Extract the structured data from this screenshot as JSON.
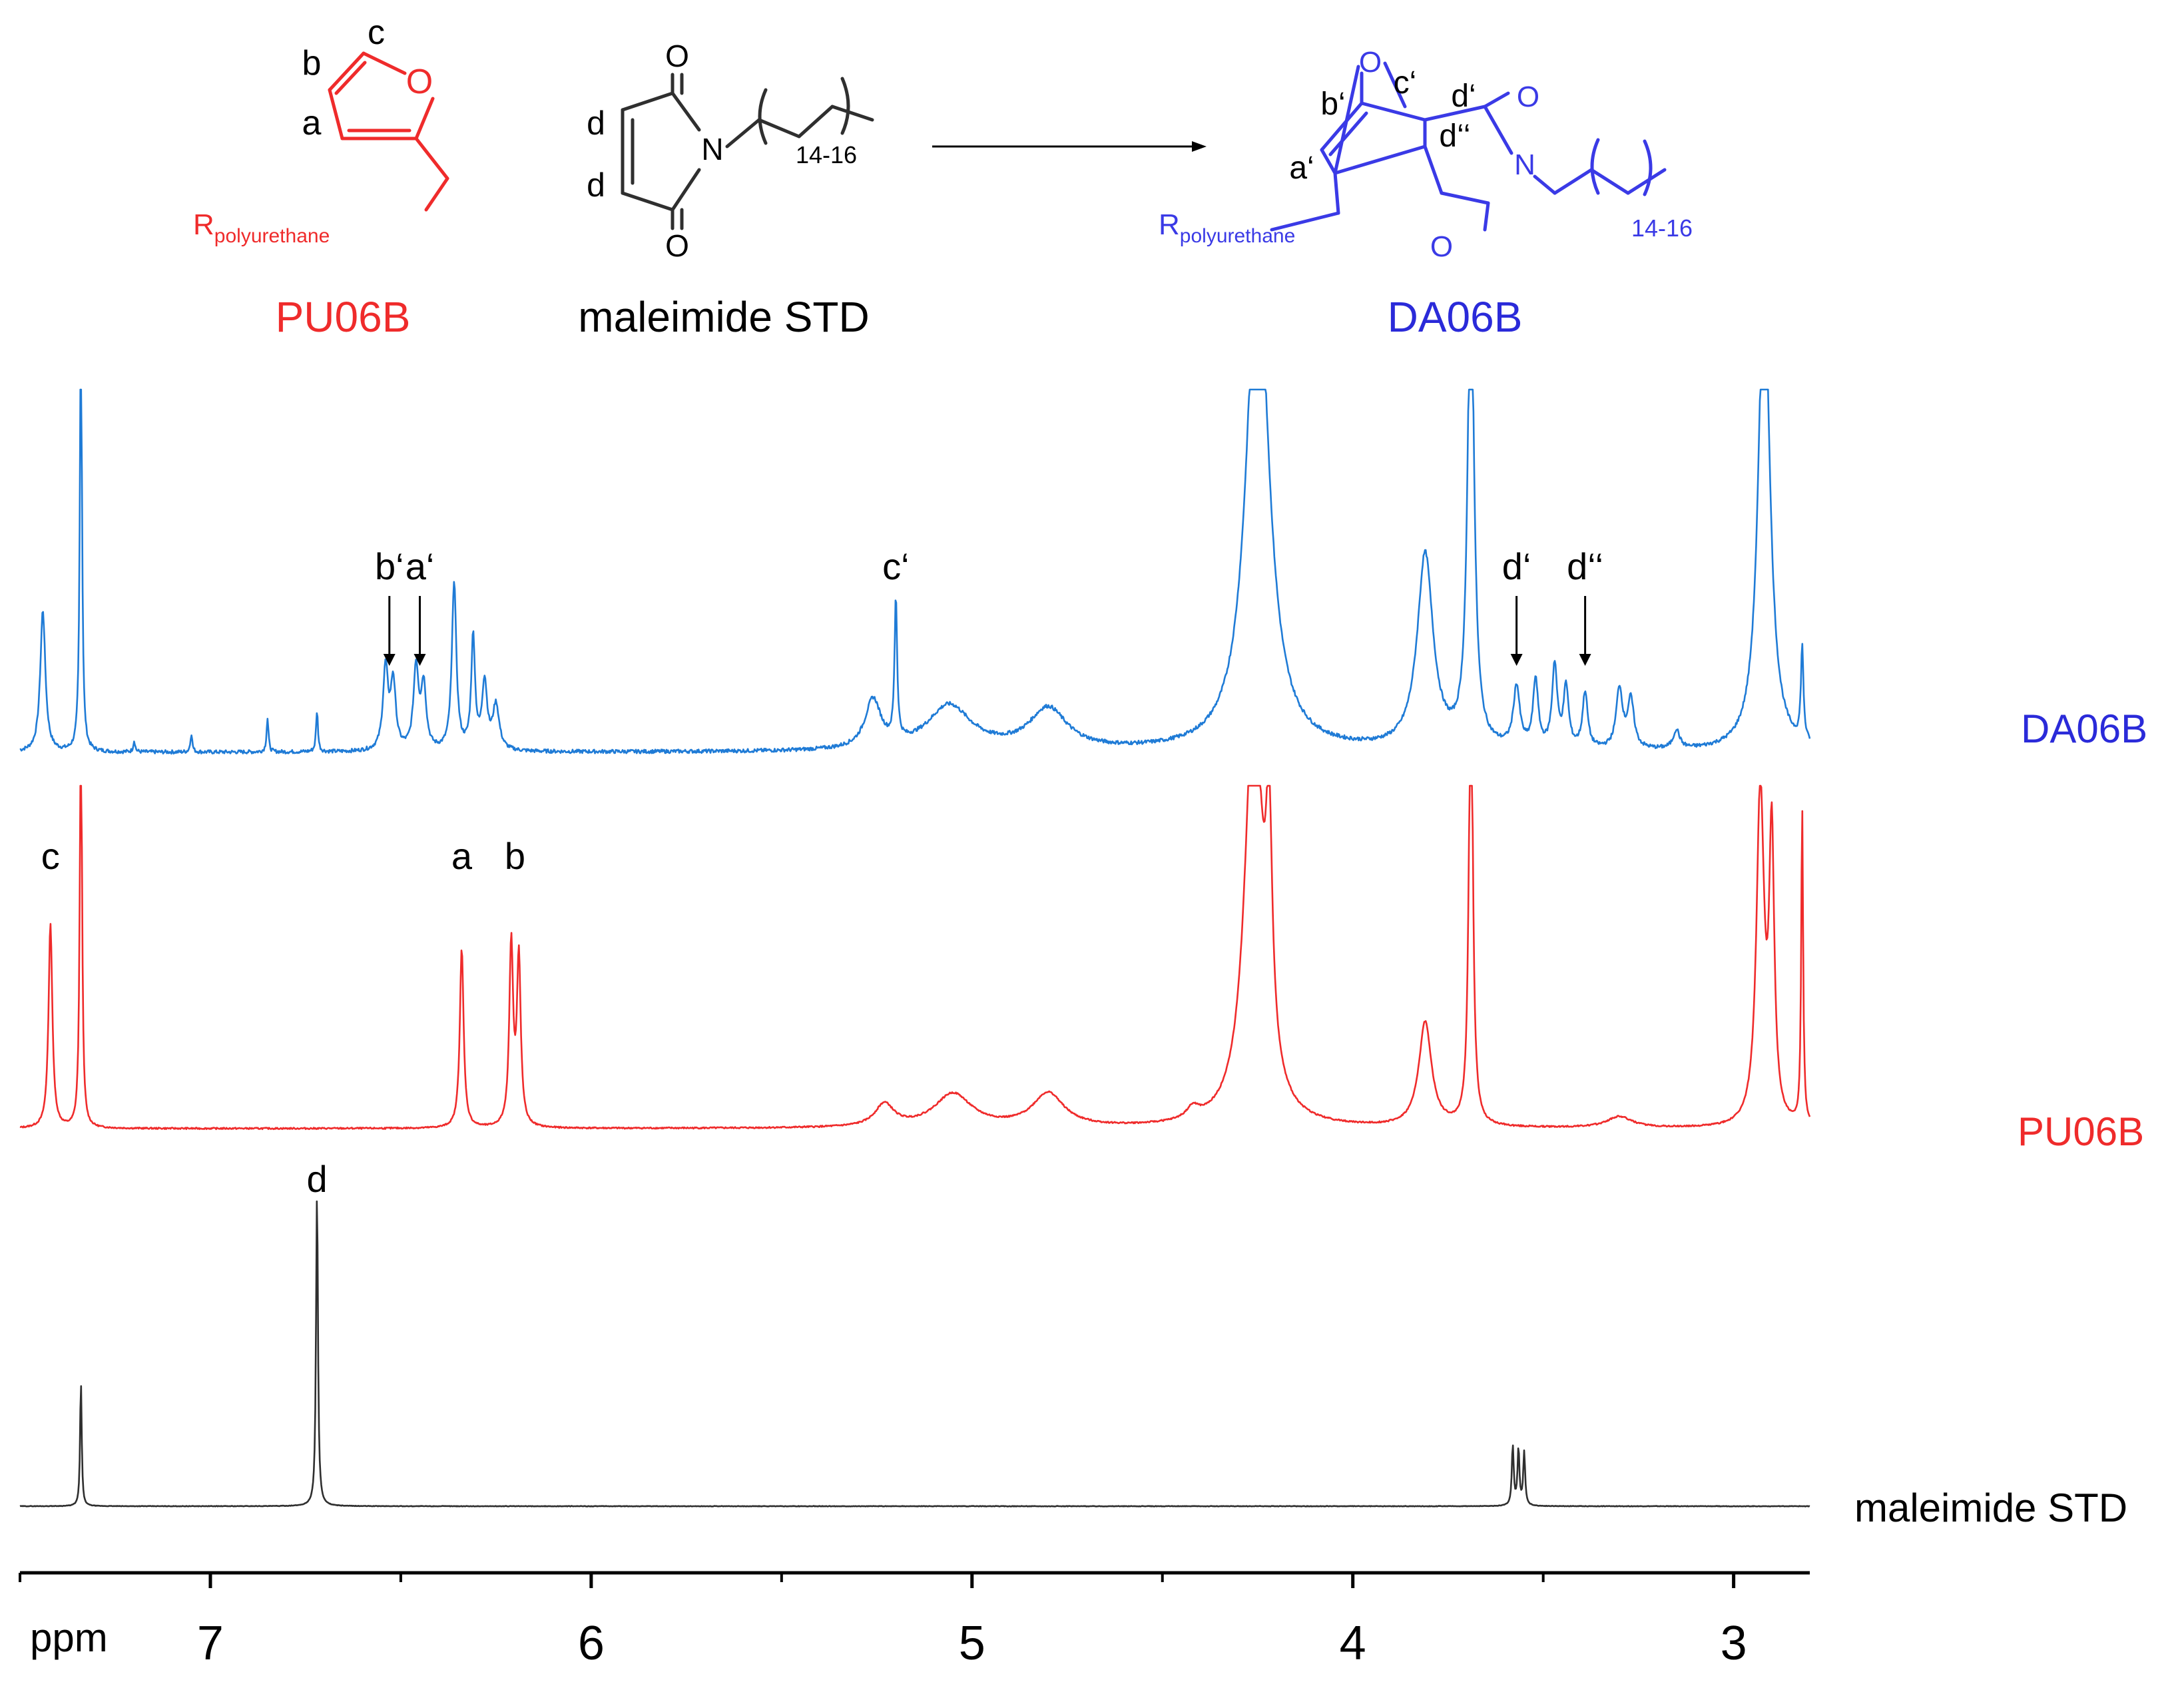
{
  "structures": {
    "pu06b": {
      "name": "PU06B",
      "atom_labels": [
        "a",
        "b",
        "c"
      ],
      "ring_atom": "O",
      "substituent": "R",
      "substituent_sub": "polyurethane"
    },
    "maleimide": {
      "name": "maleimide STD",
      "atom_labels": [
        "d",
        "d"
      ],
      "hetero": [
        "O",
        "N",
        "O"
      ],
      "chain_sub": "14-16"
    },
    "da06b": {
      "name": "DA06B",
      "atom_labels": [
        "a‘",
        "b‘",
        "c‘",
        "d‘",
        "d‘‘"
      ],
      "hetero": [
        "O",
        "O",
        "N",
        "O"
      ],
      "substituent": "R",
      "substituent_sub": "polyurethane",
      "chain_sub": "14-16"
    }
  },
  "colors": {
    "pu06b": "#ef2b2b",
    "maleimide": "#2f2f2f",
    "da06b_structure": "#3a3ae6",
    "da06b_trace": "#1f7bd6",
    "da06b_label": "#2a2ad9",
    "axis": "#000000"
  },
  "chart_data": {
    "type": "line",
    "title": "",
    "xlabel": "ppm",
    "ylabel": "",
    "x_reversed": true,
    "xlim": [
      7.5,
      2.8
    ],
    "xticks_major": [
      7,
      6,
      5,
      4,
      3
    ],
    "xticks_minor": [
      7.5,
      6.5,
      5.5,
      4.5,
      3.5
    ],
    "grid": false,
    "series": [
      {
        "name": "DA06B",
        "color": "#1f7bd6",
        "peaks": [
          {
            "ppm": 7.44,
            "height": 0.38,
            "width": 0.008
          },
          {
            "ppm": 7.34,
            "height": 1.15,
            "width": 0.0035
          },
          {
            "ppm": 7.2,
            "height": 0.03,
            "width": 0.003
          },
          {
            "ppm": 7.05,
            "height": 0.05,
            "width": 0.003
          },
          {
            "ppm": 6.85,
            "height": 0.09,
            "width": 0.003
          },
          {
            "ppm": 6.72,
            "height": 0.11,
            "width": 0.003
          },
          {
            "ppm": 6.54,
            "height": 0.22,
            "width": 0.008
          },
          {
            "ppm": 6.52,
            "height": 0.18,
            "width": 0.008
          },
          {
            "ppm": 6.46,
            "height": 0.22,
            "width": 0.008
          },
          {
            "ppm": 6.44,
            "height": 0.17,
            "width": 0.008
          },
          {
            "ppm": 6.36,
            "height": 0.45,
            "width": 0.007
          },
          {
            "ppm": 6.31,
            "height": 0.3,
            "width": 0.006
          },
          {
            "ppm": 6.28,
            "height": 0.18,
            "width": 0.008
          },
          {
            "ppm": 6.25,
            "height": 0.12,
            "width": 0.01
          },
          {
            "ppm": 5.26,
            "height": 0.13,
            "width": 0.025
          },
          {
            "ppm": 5.2,
            "height": 0.38,
            "width": 0.004
          },
          {
            "ppm": 5.06,
            "height": 0.12,
            "width": 0.07
          },
          {
            "ppm": 4.8,
            "height": 0.11,
            "width": 0.06
          },
          {
            "ppm": 4.25,
            "height": 1.35,
            "width": 0.035
          },
          {
            "ppm": 3.81,
            "height": 0.52,
            "width": 0.025
          },
          {
            "ppm": 3.69,
            "height": 1.3,
            "width": 0.01
          },
          {
            "ppm": 3.57,
            "height": 0.16,
            "width": 0.01
          },
          {
            "ppm": 3.52,
            "height": 0.18,
            "width": 0.008
          },
          {
            "ppm": 3.47,
            "height": 0.22,
            "width": 0.008
          },
          {
            "ppm": 3.44,
            "height": 0.16,
            "width": 0.008
          },
          {
            "ppm": 3.39,
            "height": 0.15,
            "width": 0.008
          },
          {
            "ppm": 3.3,
            "height": 0.16,
            "width": 0.01
          },
          {
            "ppm": 3.27,
            "height": 0.13,
            "width": 0.01
          },
          {
            "ppm": 3.15,
            "height": 0.05,
            "width": 0.01
          },
          {
            "ppm": 2.92,
            "height": 1.3,
            "width": 0.018
          },
          {
            "ppm": 2.82,
            "height": 0.25,
            "width": 0.004
          }
        ],
        "annotations": [
          {
            "label": "b‘",
            "ppm": 6.53,
            "arrow": true
          },
          {
            "label": "a‘",
            "ppm": 6.45,
            "arrow": true
          },
          {
            "label": "c‘",
            "ppm": 5.2,
            "arrow": false
          },
          {
            "label": "d‘",
            "ppm": 3.57,
            "arrow": true
          },
          {
            "label": "d‘‘",
            "ppm": 3.39,
            "arrow": true
          }
        ]
      },
      {
        "name": "PU06B",
        "color": "#ef2b2b",
        "peaks": [
          {
            "ppm": 7.42,
            "height": 0.55,
            "width": 0.006
          },
          {
            "ppm": 7.34,
            "height": 1.15,
            "width": 0.0035
          },
          {
            "ppm": 6.34,
            "height": 0.48,
            "width": 0.006
          },
          {
            "ppm": 6.21,
            "height": 0.49,
            "width": 0.006
          },
          {
            "ppm": 6.19,
            "height": 0.45,
            "width": 0.006
          },
          {
            "ppm": 5.23,
            "height": 0.06,
            "width": 0.03
          },
          {
            "ppm": 5.05,
            "height": 0.09,
            "width": 0.06
          },
          {
            "ppm": 4.8,
            "height": 0.09,
            "width": 0.05
          },
          {
            "ppm": 4.42,
            "height": 0.03,
            "width": 0.02
          },
          {
            "ppm": 4.26,
            "height": 1.15,
            "width": 0.028
          },
          {
            "ppm": 4.22,
            "height": 0.6,
            "width": 0.01
          },
          {
            "ppm": 3.81,
            "height": 0.28,
            "width": 0.02
          },
          {
            "ppm": 3.69,
            "height": 1.3,
            "width": 0.006
          },
          {
            "ppm": 3.3,
            "height": 0.03,
            "width": 0.04
          },
          {
            "ppm": 2.93,
            "height": 0.9,
            "width": 0.012
          },
          {
            "ppm": 2.9,
            "height": 0.75,
            "width": 0.008
          },
          {
            "ppm": 2.82,
            "height": 0.85,
            "width": 0.003
          }
        ],
        "annotations": [
          {
            "label": "c",
            "ppm": 7.42,
            "arrow": false
          },
          {
            "label": "a",
            "ppm": 6.34,
            "arrow": false
          },
          {
            "label": "b",
            "ppm": 6.2,
            "arrow": false
          }
        ]
      },
      {
        "name": "maleimide STD",
        "color": "#2f2f2f",
        "peaks": [
          {
            "ppm": 7.34,
            "height": 0.38,
            "width": 0.0025
          },
          {
            "ppm": 6.72,
            "height": 0.95,
            "width": 0.003
          },
          {
            "ppm": 3.58,
            "height": 0.18,
            "width": 0.003
          },
          {
            "ppm": 3.565,
            "height": 0.17,
            "width": 0.003
          },
          {
            "ppm": 3.55,
            "height": 0.16,
            "width": 0.003
          }
        ],
        "annotations": [
          {
            "label": "d",
            "ppm": 6.72,
            "arrow": false
          }
        ]
      }
    ]
  }
}
